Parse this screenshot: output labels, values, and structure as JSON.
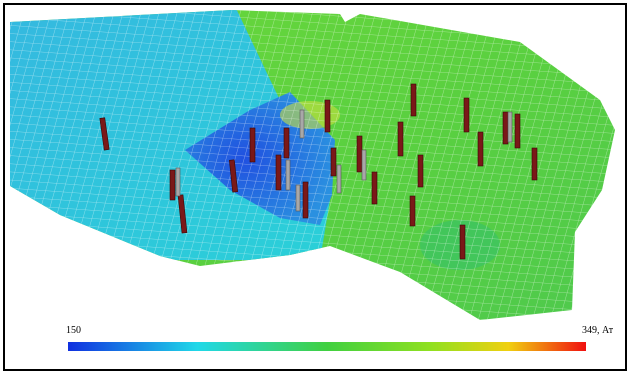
{
  "colorbar": {
    "min_label": "150",
    "max_label": "349, Ат"
  }
}
